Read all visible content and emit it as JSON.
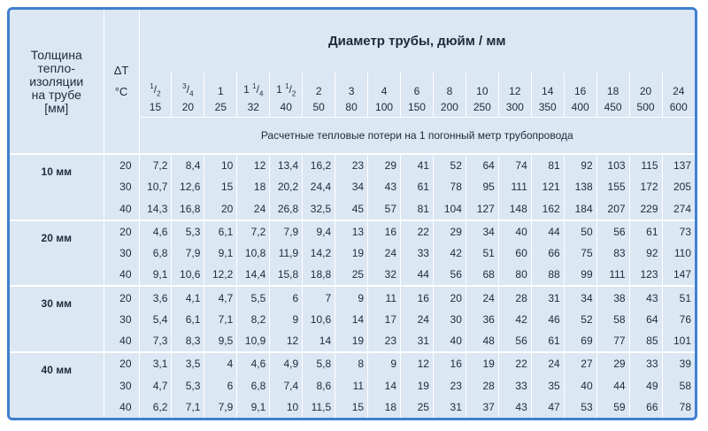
{
  "header": {
    "insulation_label": [
      "Толщина",
      "тепло-",
      "изоляции",
      "на трубе",
      "[мм]"
    ],
    "delta_t": "ΔT",
    "delta_unit": "°C",
    "title": "Диаметр трубы, дюйм / мм",
    "subtitle": "Расчетные тепловые потери на 1 погонный метр трубопровода"
  },
  "inches": [
    {
      "whole": "",
      "num": "1",
      "den": "2"
    },
    {
      "whole": "",
      "num": "3",
      "den": "4"
    },
    {
      "whole": "1",
      "num": "",
      "den": ""
    },
    {
      "whole": "1 ",
      "num": "1",
      "den": "4"
    },
    {
      "whole": "1 ",
      "num": "1",
      "den": "2"
    },
    {
      "whole": "2",
      "num": "",
      "den": ""
    },
    {
      "whole": "3",
      "num": "",
      "den": ""
    },
    {
      "whole": "4",
      "num": "",
      "den": ""
    },
    {
      "whole": "6",
      "num": "",
      "den": ""
    },
    {
      "whole": "8",
      "num": "",
      "den": ""
    },
    {
      "whole": "10",
      "num": "",
      "den": ""
    },
    {
      "whole": "12",
      "num": "",
      "den": ""
    },
    {
      "whole": "14",
      "num": "",
      "den": ""
    },
    {
      "whole": "16",
      "num": "",
      "den": ""
    },
    {
      "whole": "18",
      "num": "",
      "den": ""
    },
    {
      "whole": "20",
      "num": "",
      "den": ""
    },
    {
      "whole": "24",
      "num": "",
      "den": ""
    }
  ],
  "mm": [
    "15",
    "20",
    "25",
    "32",
    "40",
    "50",
    "80",
    "100",
    "150",
    "200",
    "250",
    "300",
    "350",
    "400",
    "450",
    "500",
    "600"
  ],
  "groups": [
    {
      "label": "10 мм",
      "rows": [
        {
          "dt": "20",
          "values": [
            "7,2",
            "8,4",
            "10",
            "12",
            "13,4",
            "16,2",
            "23",
            "29",
            "41",
            "52",
            "64",
            "74",
            "81",
            "92",
            "103",
            "115",
            "137"
          ]
        },
        {
          "dt": "30",
          "values": [
            "10,7",
            "12,6",
            "15",
            "18",
            "20,2",
            "24,4",
            "34",
            "43",
            "61",
            "78",
            "95",
            "111",
            "121",
            "138",
            "155",
            "172",
            "205"
          ]
        },
        {
          "dt": "40",
          "values": [
            "14,3",
            "16,8",
            "20",
            "24",
            "26,8",
            "32,5",
            "45",
            "57",
            "81",
            "104",
            "127",
            "148",
            "162",
            "184",
            "207",
            "229",
            "274"
          ]
        }
      ]
    },
    {
      "label": "20 мм",
      "rows": [
        {
          "dt": "20",
          "values": [
            "4,6",
            "5,3",
            "6,1",
            "7,2",
            "7,9",
            "9,4",
            "13",
            "16",
            "22",
            "29",
            "34",
            "40",
            "44",
            "50",
            "56",
            "61",
            "73"
          ]
        },
        {
          "dt": "30",
          "values": [
            "6,8",
            "7,9",
            "9,1",
            "10,8",
            "11,9",
            "14,2",
            "19",
            "24",
            "33",
            "42",
            "51",
            "60",
            "66",
            "75",
            "83",
            "92",
            "110"
          ]
        },
        {
          "dt": "40",
          "values": [
            "9,1",
            "10,6",
            "12,2",
            "14,4",
            "15,8",
            "18,8",
            "25",
            "32",
            "44",
            "56",
            "68",
            "80",
            "88",
            "99",
            "111",
            "123",
            "147"
          ]
        }
      ]
    },
    {
      "label": "30 мм",
      "rows": [
        {
          "dt": "20",
          "values": [
            "3,6",
            "4,1",
            "4,7",
            "5,5",
            "6",
            "7",
            "9",
            "11",
            "16",
            "20",
            "24",
            "28",
            "31",
            "34",
            "38",
            "43",
            "51"
          ]
        },
        {
          "dt": "30",
          "values": [
            "5,4",
            "6,1",
            "7,1",
            "8,2",
            "9",
            "10,6",
            "14",
            "17",
            "24",
            "30",
            "36",
            "42",
            "46",
            "52",
            "58",
            "64",
            "76"
          ]
        },
        {
          "dt": "40",
          "values": [
            "7,3",
            "8,3",
            "9,5",
            "10,9",
            "12",
            "14",
            "19",
            "23",
            "31",
            "40",
            "48",
            "56",
            "61",
            "69",
            "77",
            "85",
            "101"
          ]
        }
      ]
    },
    {
      "label": "40 мм",
      "rows": [
        {
          "dt": "20",
          "values": [
            "3,1",
            "3,5",
            "4",
            "4,6",
            "4,9",
            "5,8",
            "8",
            "9",
            "12",
            "16",
            "19",
            "22",
            "24",
            "27",
            "29",
            "33",
            "39"
          ]
        },
        {
          "dt": "30",
          "values": [
            "4,7",
            "5,3",
            "6",
            "6,8",
            "7,4",
            "8,6",
            "11",
            "14",
            "19",
            "23",
            "28",
            "33",
            "35",
            "40",
            "44",
            "49",
            "58"
          ]
        },
        {
          "dt": "40",
          "values": [
            "6,2",
            "7,1",
            "7,9",
            "9,1",
            "10",
            "11,5",
            "15",
            "18",
            "25",
            "31",
            "37",
            "43",
            "47",
            "53",
            "59",
            "66",
            "78"
          ]
        }
      ]
    }
  ],
  "colors": {
    "frame": "#3f7fd0",
    "background": "#dbe7f3",
    "grid": "#ffffff"
  }
}
